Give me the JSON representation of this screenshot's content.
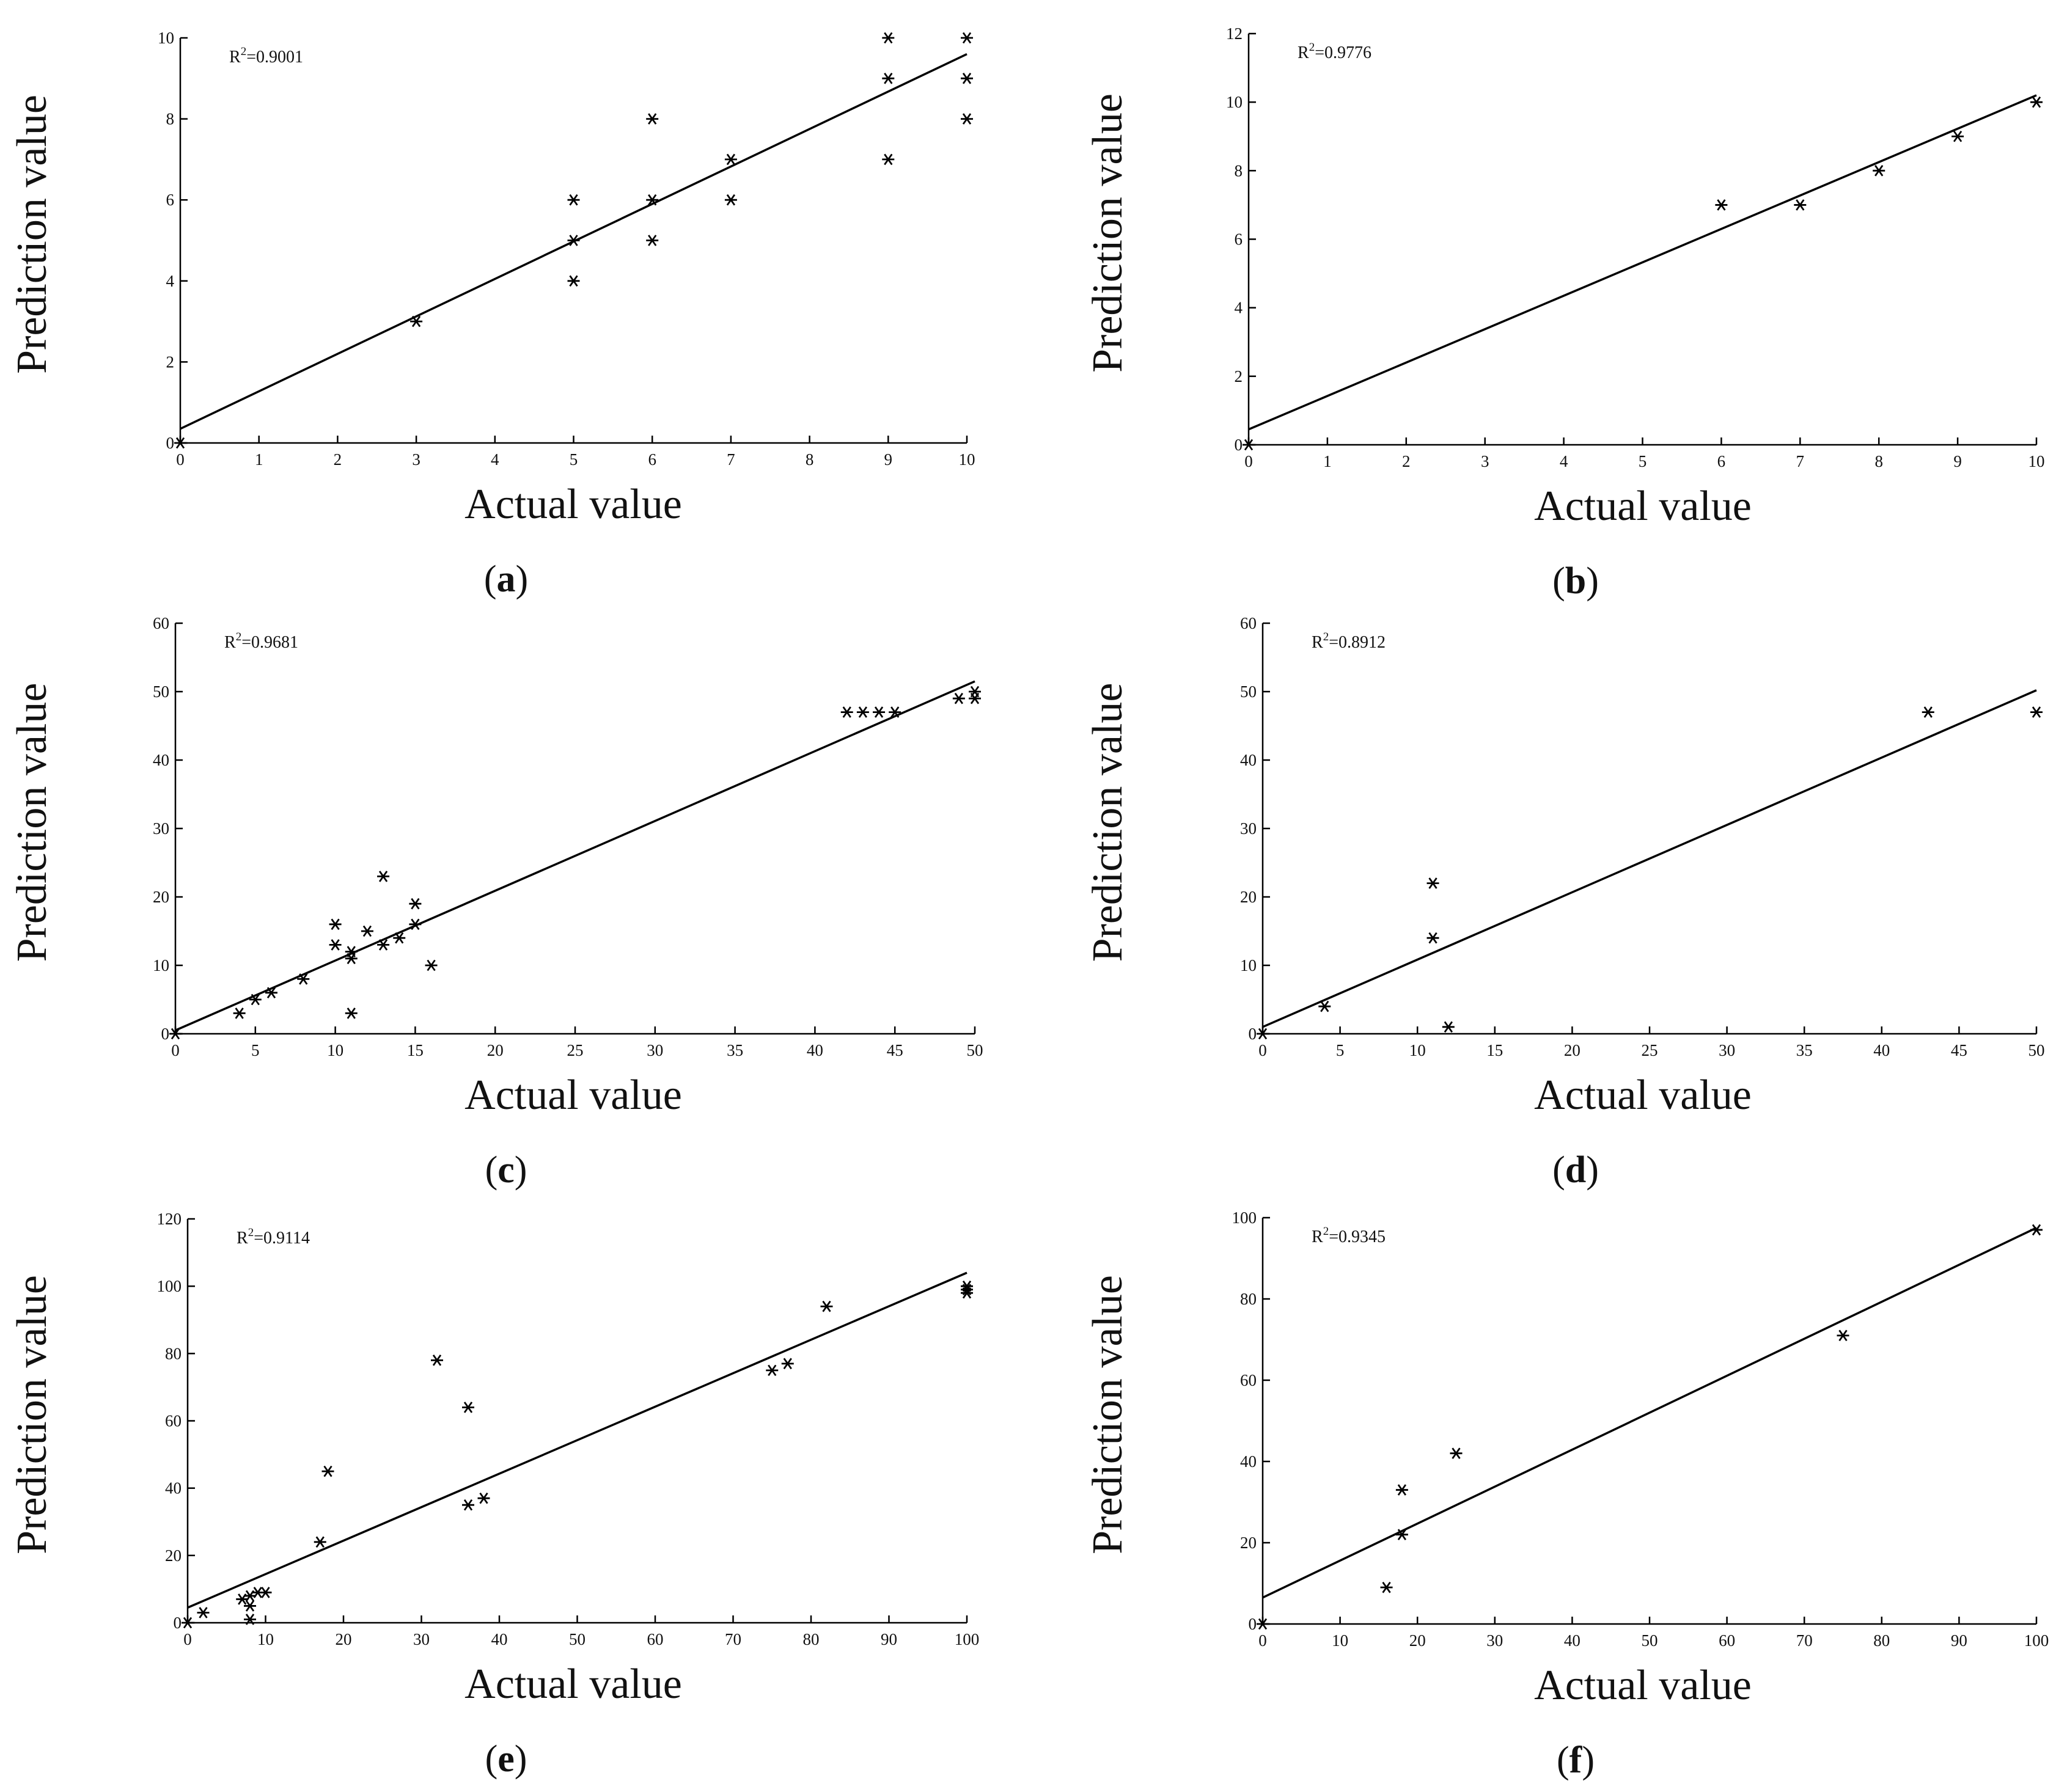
{
  "figure": {
    "panels_count": 6
  },
  "chart_data": [
    {
      "type": "scatter",
      "panel_label": "a",
      "r2_label": "R",
      "r2_exponent": "2",
      "r2_value": "=0.9001",
      "xlabel": "Actual value",
      "ylabel": "Prediction value",
      "xlim": [
        0,
        10
      ],
      "ylim": [
        0,
        10
      ],
      "x_ticks": [
        0,
        1,
        2,
        3,
        4,
        5,
        6,
        7,
        8,
        9,
        10
      ],
      "y_ticks": [
        0,
        2,
        4,
        6,
        8,
        10
      ],
      "fit_line": {
        "x": [
          0,
          10
        ],
        "y": [
          0.35,
          9.6
        ]
      },
      "points": [
        {
          "x": 0,
          "y": 0
        },
        {
          "x": 3,
          "y": 3
        },
        {
          "x": 5,
          "y": 4
        },
        {
          "x": 5,
          "y": 5
        },
        {
          "x": 5,
          "y": 6
        },
        {
          "x": 6,
          "y": 5
        },
        {
          "x": 6,
          "y": 6
        },
        {
          "x": 6,
          "y": 8
        },
        {
          "x": 7,
          "y": 6
        },
        {
          "x": 7,
          "y": 7
        },
        {
          "x": 9,
          "y": 7
        },
        {
          "x": 9,
          "y": 9
        },
        {
          "x": 9,
          "y": 10
        },
        {
          "x": 10,
          "y": 8
        },
        {
          "x": 10,
          "y": 9
        },
        {
          "x": 10,
          "y": 10
        }
      ]
    },
    {
      "type": "scatter",
      "panel_label": "b",
      "r2_label": "R",
      "r2_exponent": "2",
      "r2_value": "=0.9776",
      "xlabel": "Actual value",
      "ylabel": "Prediction value",
      "xlim": [
        0,
        10
      ],
      "ylim": [
        0,
        12
      ],
      "x_ticks": [
        0,
        1,
        2,
        3,
        4,
        5,
        6,
        7,
        8,
        9,
        10
      ],
      "y_ticks": [
        0,
        2,
        4,
        6,
        8,
        10,
        12
      ],
      "fit_line": {
        "x": [
          0,
          10
        ],
        "y": [
          0.45,
          10.2
        ]
      },
      "points": [
        {
          "x": 0,
          "y": 0
        },
        {
          "x": 6,
          "y": 7
        },
        {
          "x": 7,
          "y": 7
        },
        {
          "x": 8,
          "y": 8
        },
        {
          "x": 9,
          "y": 9
        },
        {
          "x": 10,
          "y": 10
        }
      ]
    },
    {
      "type": "scatter",
      "panel_label": "c",
      "r2_label": "R",
      "r2_exponent": "2",
      "r2_value": "=0.9681",
      "xlabel": "Actual value",
      "ylabel": "Prediction value",
      "xlim": [
        0,
        50
      ],
      "ylim": [
        0,
        60
      ],
      "x_ticks": [
        0,
        5,
        10,
        15,
        20,
        25,
        30,
        35,
        40,
        45,
        50
      ],
      "y_ticks": [
        0,
        10,
        20,
        30,
        40,
        50,
        60
      ],
      "fit_line": {
        "x": [
          0,
          50
        ],
        "y": [
          0.5,
          51.5
        ]
      },
      "points": [
        {
          "x": 0,
          "y": 0
        },
        {
          "x": 4,
          "y": 3
        },
        {
          "x": 5,
          "y": 5
        },
        {
          "x": 6,
          "y": 6
        },
        {
          "x": 8,
          "y": 8
        },
        {
          "x": 10,
          "y": 13
        },
        {
          "x": 10,
          "y": 16
        },
        {
          "x": 11,
          "y": 3
        },
        {
          "x": 11,
          "y": 11
        },
        {
          "x": 11,
          "y": 12
        },
        {
          "x": 12,
          "y": 15
        },
        {
          "x": 13,
          "y": 13
        },
        {
          "x": 13,
          "y": 23
        },
        {
          "x": 14,
          "y": 14
        },
        {
          "x": 15,
          "y": 16
        },
        {
          "x": 15,
          "y": 19
        },
        {
          "x": 16,
          "y": 10
        },
        {
          "x": 42,
          "y": 47
        },
        {
          "x": 43,
          "y": 47
        },
        {
          "x": 44,
          "y": 47
        },
        {
          "x": 45,
          "y": 47
        },
        {
          "x": 49,
          "y": 49
        },
        {
          "x": 50,
          "y": 49
        },
        {
          "x": 50,
          "y": 50
        }
      ]
    },
    {
      "type": "scatter",
      "panel_label": "d",
      "r2_label": "R",
      "r2_exponent": "2",
      "r2_value": "=0.8912",
      "xlabel": "Actual value",
      "ylabel": "Prediction value",
      "xlim": [
        0,
        50
      ],
      "ylim": [
        0,
        60
      ],
      "x_ticks": [
        0,
        5,
        10,
        15,
        20,
        25,
        30,
        35,
        40,
        45,
        50
      ],
      "y_ticks": [
        0,
        10,
        20,
        30,
        40,
        50,
        60
      ],
      "fit_line": {
        "x": [
          0,
          50
        ],
        "y": [
          1,
          50.2
        ]
      },
      "points": [
        {
          "x": 0,
          "y": 0
        },
        {
          "x": 4,
          "y": 4
        },
        {
          "x": 11,
          "y": 14
        },
        {
          "x": 11,
          "y": 22
        },
        {
          "x": 12,
          "y": 1
        },
        {
          "x": 43,
          "y": 47
        },
        {
          "x": 50,
          "y": 47
        }
      ]
    },
    {
      "type": "scatter",
      "panel_label": "e",
      "r2_label": "R",
      "r2_exponent": "2",
      "r2_value": "=0.9114",
      "xlabel": "Actual value",
      "ylabel": "Prediction value",
      "xlim": [
        0,
        100
      ],
      "ylim": [
        0,
        120
      ],
      "x_ticks": [
        0,
        10,
        20,
        30,
        40,
        50,
        60,
        70,
        80,
        90,
        100
      ],
      "y_ticks": [
        0,
        20,
        40,
        60,
        80,
        100,
        120
      ],
      "fit_line": {
        "x": [
          0,
          100
        ],
        "y": [
          4.5,
          104
        ]
      },
      "points": [
        {
          "x": 0,
          "y": 0
        },
        {
          "x": 2,
          "y": 3
        },
        {
          "x": 7,
          "y": 7
        },
        {
          "x": 8,
          "y": 1
        },
        {
          "x": 8,
          "y": 5
        },
        {
          "x": 8,
          "y": 8
        },
        {
          "x": 9,
          "y": 9
        },
        {
          "x": 10,
          "y": 9
        },
        {
          "x": 17,
          "y": 24
        },
        {
          "x": 18,
          "y": 45
        },
        {
          "x": 32,
          "y": 78
        },
        {
          "x": 36,
          "y": 35
        },
        {
          "x": 36,
          "y": 64
        },
        {
          "x": 38,
          "y": 37
        },
        {
          "x": 75,
          "y": 75
        },
        {
          "x": 77,
          "y": 77
        },
        {
          "x": 82,
          "y": 94
        },
        {
          "x": 100,
          "y": 98
        },
        {
          "x": 100,
          "y": 99
        },
        {
          "x": 100,
          "y": 100
        }
      ]
    },
    {
      "type": "scatter",
      "panel_label": "f",
      "r2_label": "R",
      "r2_exponent": "2",
      "r2_value": "=0.9345",
      "xlabel": "Actual value",
      "ylabel": "Prediction value",
      "xlim": [
        0,
        100
      ],
      "ylim": [
        0,
        100
      ],
      "x_ticks": [
        0,
        10,
        20,
        30,
        40,
        50,
        60,
        70,
        80,
        90,
        100
      ],
      "y_ticks": [
        0,
        20,
        40,
        60,
        80,
        100
      ],
      "fit_line": {
        "x": [
          0,
          100
        ],
        "y": [
          6.5,
          97.5
        ]
      },
      "points": [
        {
          "x": 0,
          "y": 0
        },
        {
          "x": 16,
          "y": 9
        },
        {
          "x": 18,
          "y": 22
        },
        {
          "x": 18,
          "y": 33
        },
        {
          "x": 25,
          "y": 42
        },
        {
          "x": 75,
          "y": 71
        },
        {
          "x": 100,
          "y": 97
        }
      ]
    }
  ]
}
